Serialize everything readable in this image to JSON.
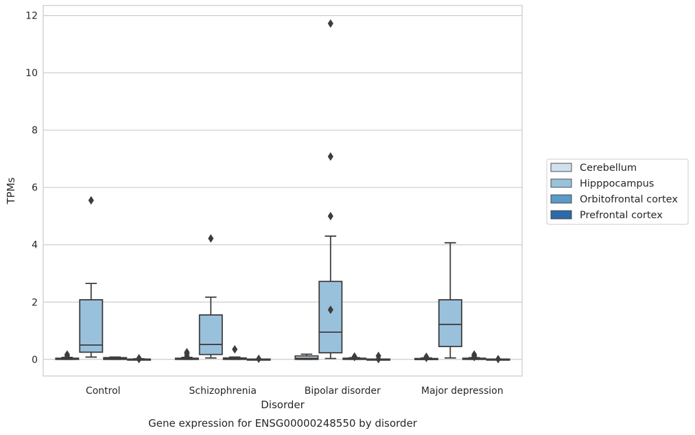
{
  "chart_data": {
    "type": "box",
    "caption": "Gene expression for ENSG00000248550 by disorder",
    "xlabel": "Disorder",
    "ylabel": "TPMs",
    "ylim": [
      -0.58,
      12.35
    ],
    "yticks": [
      0,
      2,
      4,
      6,
      8,
      10,
      12
    ],
    "grid": "horizontal",
    "legend_position": "right",
    "categories": [
      "Control",
      "Schizophrenia",
      "Bipolar disorder",
      "Major depression"
    ],
    "series": [
      {
        "name": "Cerebellum",
        "color": "#d0e0ee",
        "boxes": [
          {
            "q1": 0.0,
            "median": 0.02,
            "q3": 0.04,
            "whisker_low": 0.0,
            "whisker_high": 0.07,
            "outliers": [
              0.12,
              0.17
            ]
          },
          {
            "q1": 0.0,
            "median": 0.02,
            "q3": 0.04,
            "whisker_low": 0.0,
            "whisker_high": 0.07,
            "outliers": [
              0.12,
              0.2,
              0.25
            ]
          },
          {
            "q1": 0.0,
            "median": 0.04,
            "q3": 0.12,
            "whisker_low": 0.0,
            "whisker_high": 0.18,
            "outliers": []
          },
          {
            "q1": 0.0,
            "median": 0.02,
            "q3": 0.03,
            "whisker_low": 0.0,
            "whisker_high": 0.05,
            "outliers": [
              0.05,
              0.09
            ]
          }
        ]
      },
      {
        "name": "Hipppocampus",
        "color": "#9ac1dc",
        "boxes": [
          {
            "q1": 0.25,
            "median": 0.5,
            "q3": 2.08,
            "whisker_low": 0.08,
            "whisker_high": 2.65,
            "outliers": [
              5.55
            ]
          },
          {
            "q1": 0.17,
            "median": 0.52,
            "q3": 1.55,
            "whisker_low": 0.05,
            "whisker_high": 2.17,
            "outliers": [
              4.22
            ]
          },
          {
            "q1": 0.23,
            "median": 0.95,
            "q3": 2.72,
            "whisker_low": 0.03,
            "whisker_high": 4.3,
            "outliers": [
              1.73,
              5.0,
              7.08,
              11.72
            ]
          },
          {
            "q1": 0.45,
            "median": 1.22,
            "q3": 2.08,
            "whisker_low": 0.05,
            "whisker_high": 4.07,
            "outliers": []
          }
        ]
      },
      {
        "name": "Orbitofrontal cortex",
        "color": "#5a9bc8",
        "boxes": [
          {
            "q1": 0.0,
            "median": 0.03,
            "q3": 0.06,
            "whisker_low": 0.0,
            "whisker_high": 0.08,
            "outliers": []
          },
          {
            "q1": 0.0,
            "median": 0.02,
            "q3": 0.05,
            "whisker_low": 0.0,
            "whisker_high": 0.08,
            "outliers": [
              0.35
            ]
          },
          {
            "q1": 0.0,
            "median": 0.02,
            "q3": 0.04,
            "whisker_low": 0.0,
            "whisker_high": 0.06,
            "outliers": [
              0.08,
              0.1
            ]
          },
          {
            "q1": 0.0,
            "median": 0.02,
            "q3": 0.04,
            "whisker_low": 0.0,
            "whisker_high": 0.06,
            "outliers": [
              0.08,
              0.12,
              0.17
            ]
          }
        ]
      },
      {
        "name": "Prefrontal cortex",
        "color": "#2c6aa8",
        "boxes": [
          {
            "q1": 0.0,
            "median": 0.0,
            "q3": 0.01,
            "whisker_low": 0.0,
            "whisker_high": 0.02,
            "outliers": [
              0.01,
              0.04
            ]
          },
          {
            "q1": 0.0,
            "median": 0.0,
            "q3": 0.01,
            "whisker_low": 0.0,
            "whisker_high": 0.01,
            "outliers": [
              0.02
            ]
          },
          {
            "q1": 0.0,
            "median": 0.0,
            "q3": 0.01,
            "whisker_low": 0.0,
            "whisker_high": 0.01,
            "outliers": [
              0.01,
              0.12
            ]
          },
          {
            "q1": 0.0,
            "median": 0.0,
            "q3": 0.01,
            "whisker_low": 0.0,
            "whisker_high": 0.01,
            "outliers": [
              0.01
            ]
          }
        ]
      }
    ]
  }
}
